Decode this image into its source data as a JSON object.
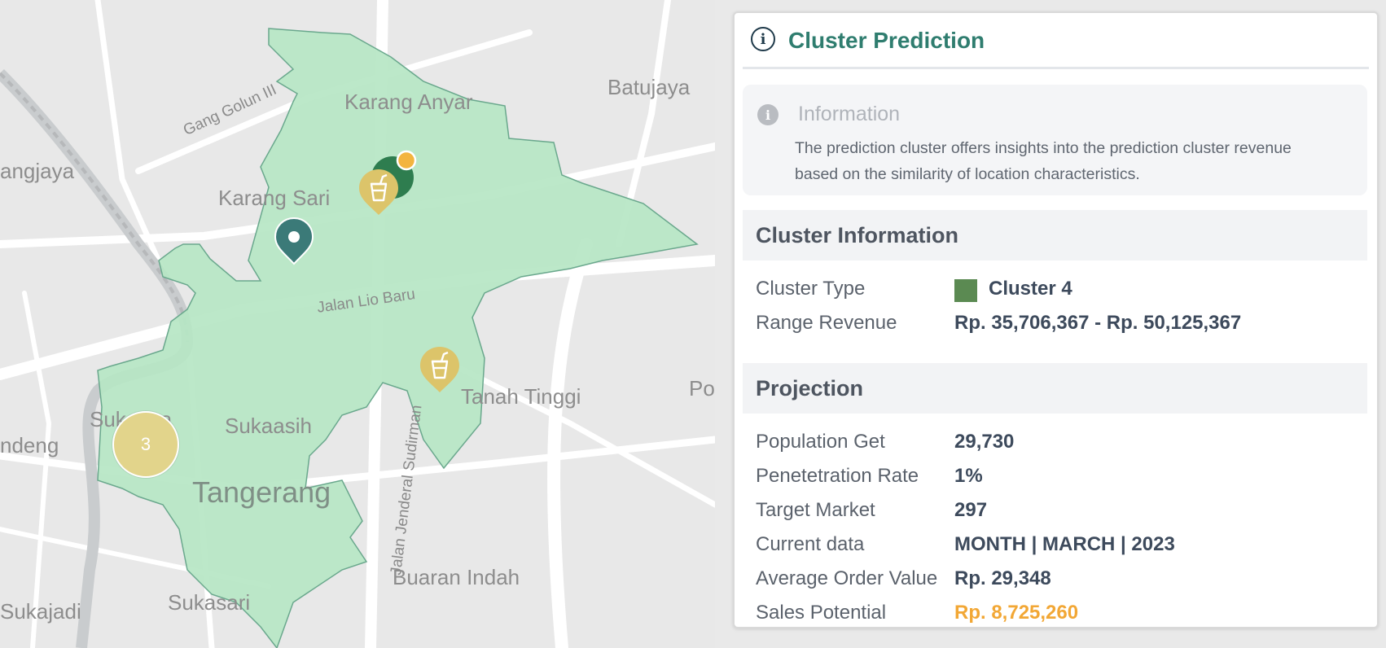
{
  "map": {
    "labels": {
      "batujaya": "Batujaya",
      "karang_anyar": "Karang Anyar",
      "gang_golun": "Gang Golun III",
      "angjaya": "angjaya",
      "karang_sari": "Karang Sari",
      "jalan_lio_baru": "Jalan Lio Baru",
      "tanah_tinggi": "Tanah Tinggi",
      "po": "Po",
      "sukaasih": "Sukaasih",
      "suka_usa": "Sukausa",
      "tangerang": "Tangerang",
      "ndeng": "ndeng",
      "jalan_jenderal_sudirman": "Jalan Jenderal Sudirman",
      "buaran_indah": "Buaran Indah",
      "sukasari": "Sukasari",
      "sukajadi": "Sukajadi"
    },
    "cluster_count": "3",
    "colors": {
      "polygon_fill": "#b6e6c4",
      "polygon_stroke": "#6aa88d",
      "location_pin": "#3b7a78",
      "store_marker": "#dcc46a",
      "dot_marker": "#f3b43f"
    },
    "icons": [
      "location-pin-icon",
      "drink-cup-icon"
    ]
  },
  "panel": {
    "title": "Cluster Prediction",
    "info": {
      "title": "Information",
      "text": "The prediction cluster offers insights into the prediction cluster revenue based on the similarity of location characteristics."
    },
    "cluster_information": {
      "heading": "Cluster Information",
      "rows": [
        {
          "label": "Cluster Type",
          "value": "Cluster 4",
          "swatch": "#5b8a52"
        },
        {
          "label": "Range Revenue",
          "value": "Rp. 35,706,367 - Rp. 50,125,367"
        }
      ]
    },
    "projection": {
      "heading": "Projection",
      "rows": [
        {
          "label": "Population Get",
          "value": "29,730"
        },
        {
          "label": "Penetetration Rate",
          "value": "1%"
        },
        {
          "label": "Target Market",
          "value": "297"
        },
        {
          "label": "Current data",
          "value": "MONTH | MARCH | 2023"
        },
        {
          "label": "Average Order Value",
          "value": "Rp. 29,348"
        },
        {
          "label": "Sales Potential",
          "value": "Rp. 8,725,260",
          "color": "#f2a735"
        }
      ]
    }
  }
}
